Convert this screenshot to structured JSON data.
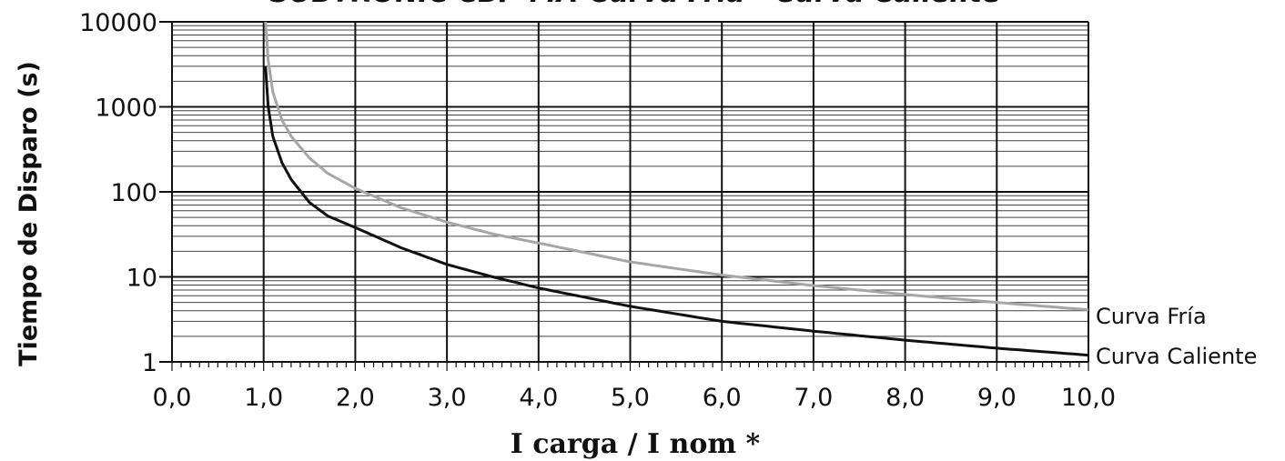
{
  "chart_data": {
    "type": "line",
    "title": "SUBTRONIC CBP-MA-Curva Fria - Curva Caliente",
    "xlabel": "I carga / I nom *",
    "ylabel": "Tiempo de Disparo (s)",
    "xlim": [
      0,
      10
    ],
    "ylim": [
      1,
      10000
    ],
    "y_scale": "log",
    "grid": true,
    "x_ticks": [
      "0,0",
      "1,0",
      "2,0",
      "3,0",
      "4,0",
      "5,0",
      "6,0",
      "7,0",
      "8,0",
      "9,0",
      "10,0"
    ],
    "y_ticks": [
      "1",
      "10",
      "100",
      "1000",
      "10000"
    ],
    "series": [
      {
        "name": "Curva Fría",
        "color": "#a6a6a6",
        "x": [
          1.02,
          1.05,
          1.1,
          1.2,
          1.3,
          1.5,
          1.7,
          2.0,
          2.5,
          3.0,
          3.5,
          4.0,
          5.0,
          6.0,
          7.0,
          8.0,
          9.0,
          10.0
        ],
        "y": [
          10000,
          3500,
          1500,
          700,
          450,
          250,
          165,
          110,
          65,
          44,
          32,
          25,
          15,
          10.5,
          7.9,
          6.2,
          5.0,
          4.1
        ]
      },
      {
        "name": "Curva Caliente",
        "color": "#111111",
        "x": [
          1.02,
          1.05,
          1.1,
          1.2,
          1.3,
          1.5,
          1.7,
          2.0,
          2.5,
          3.0,
          3.5,
          4.0,
          5.0,
          6.0,
          7.0,
          8.0,
          9.0,
          10.0
        ],
        "y": [
          3000,
          1000,
          450,
          220,
          140,
          75,
          52,
          38,
          22,
          14,
          10,
          7.4,
          4.5,
          3.0,
          2.3,
          1.8,
          1.45,
          1.2
        ]
      }
    ]
  }
}
